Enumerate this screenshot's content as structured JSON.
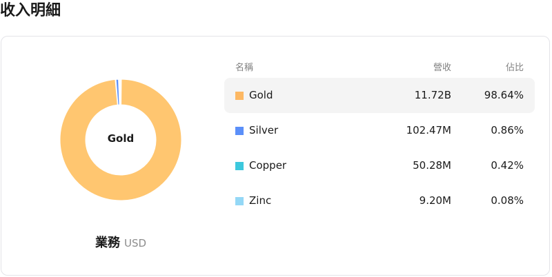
{
  "title": "收入明細",
  "donut": {
    "center_label": "Gold"
  },
  "footer": {
    "label": "業務",
    "currency": "USD"
  },
  "table": {
    "headers": [
      "名稱",
      "營收",
      "佔比"
    ],
    "rows": [
      {
        "name": "Gold",
        "revenue": "11.72B",
        "share": "98.64%",
        "percent": 98.64,
        "color": "#ffc670",
        "swatch": "#fdb863",
        "selected": true
      },
      {
        "name": "Silver",
        "revenue": "102.47M",
        "share": "0.86%",
        "percent": 0.86,
        "color": "#5b8ff9",
        "swatch": "#5b8ff9"
      },
      {
        "name": "Copper",
        "revenue": "50.28M",
        "share": "0.42%",
        "percent": 0.42,
        "color": "#3cc8dd",
        "swatch": "#3cc8dd"
      },
      {
        "name": "Zinc",
        "revenue": "9.20M",
        "share": "0.08%",
        "percent": 0.08,
        "color": "#94d8f6",
        "swatch": "#94d8f6"
      }
    ]
  }
}
